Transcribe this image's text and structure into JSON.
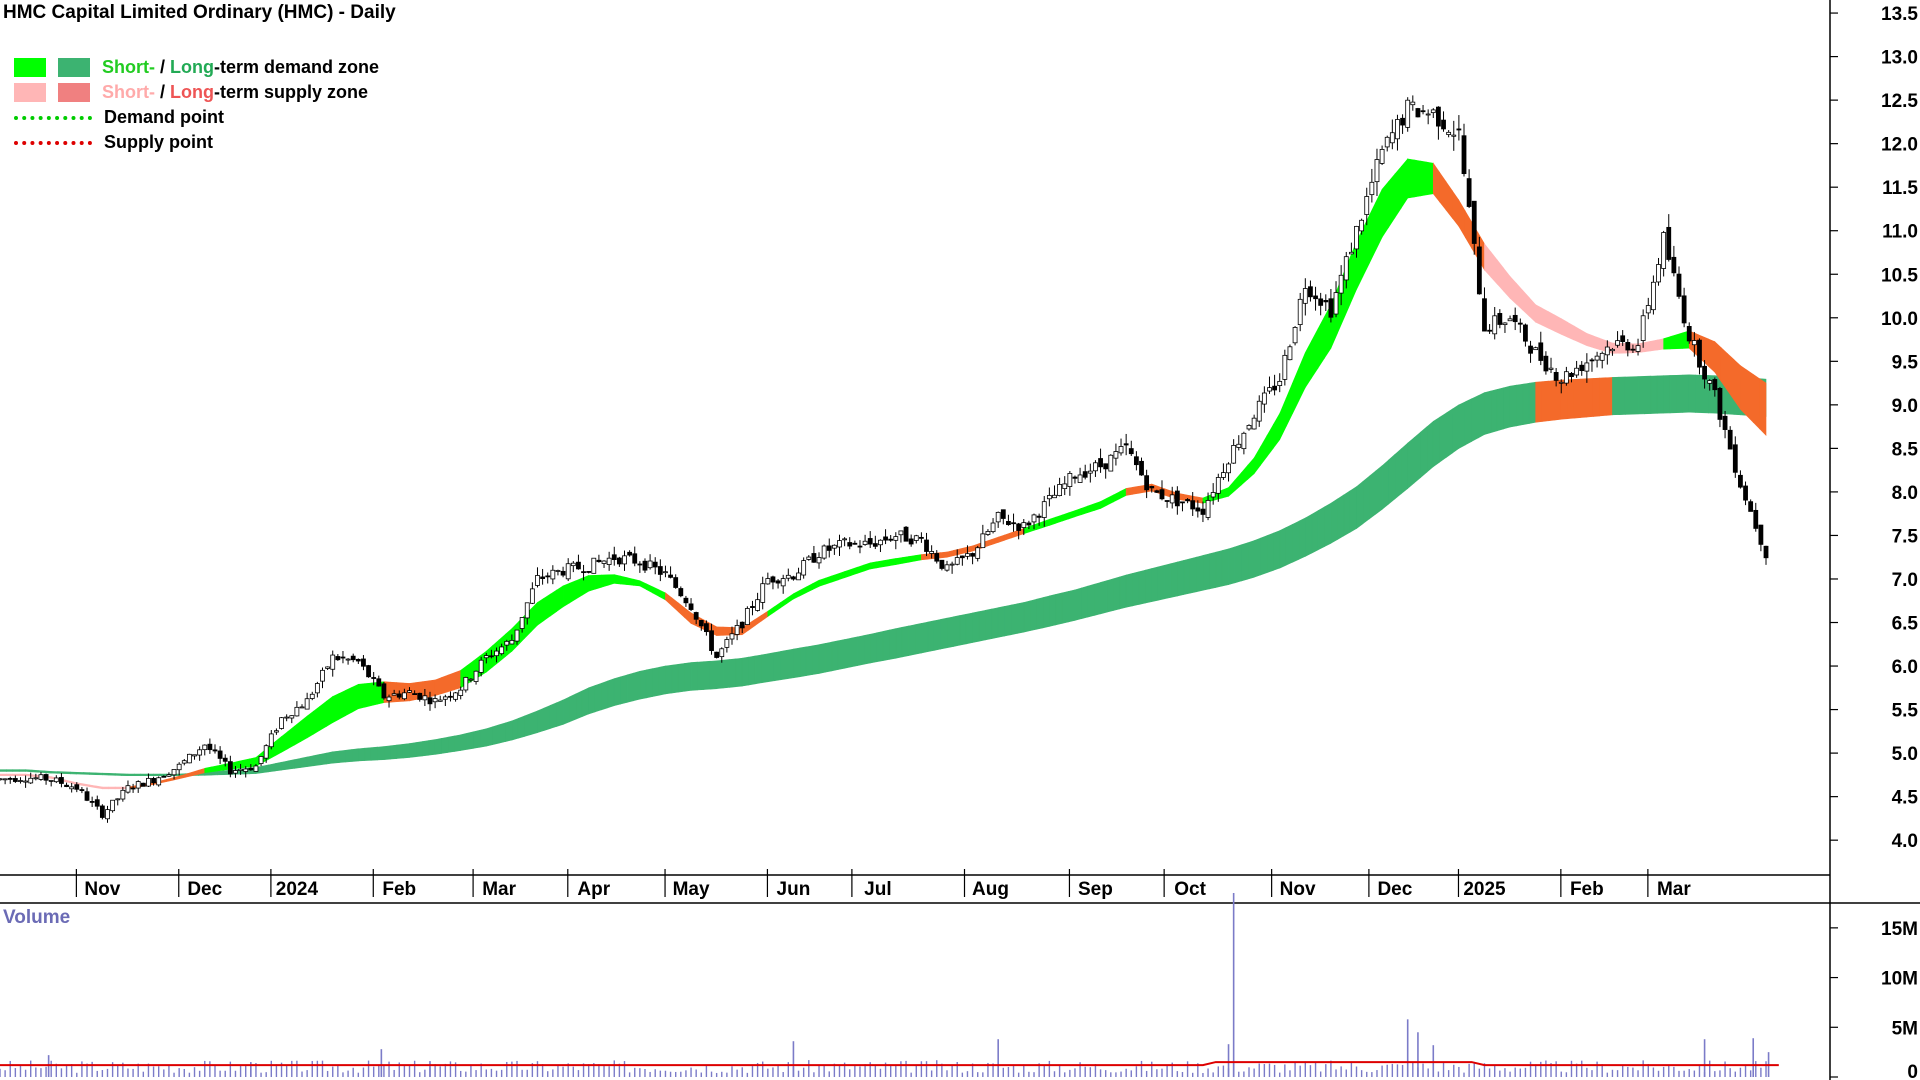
{
  "title": "HMC Capital Limited Ordinary (HMC) - Daily",
  "legend": {
    "row1": {
      "short": "Short-",
      "sep": " / ",
      "long": "Long",
      "rest": "-term demand zone"
    },
    "row2": {
      "short": "Short-",
      "sep": " / ",
      "long": "Long",
      "rest": "-term supply zone"
    },
    "row3": "Demand point",
    "row4": "Supply point"
  },
  "volume_label": "Volume",
  "colors": {
    "short_demand": "#00ff00",
    "long_demand": "#3cb371",
    "short_supply": "#ffb6b6",
    "long_supply": "#f08080",
    "overlap": "#f46a2a",
    "demand_point": "#00cc00",
    "supply_point": "#dd0000",
    "volume_bar": "#7b7bc8",
    "volume_ma": "#dd0000",
    "short_label": "#22cc22",
    "long_label": "#22aa55",
    "short_supply_label": "#ffaaaa",
    "long_supply_label": "#ee5555"
  },
  "chart_data": {
    "type": "candlestick",
    "price_axis": {
      "ticks": [
        "4.0",
        "4.5",
        "5.0",
        "5.5",
        "6.0",
        "6.5",
        "7.0",
        "7.5",
        "8.0",
        "8.5",
        "9.0",
        "9.5",
        "10.0",
        "10.5",
        "11.0",
        "11.5",
        "12.0",
        "12.5",
        "13.0",
        "13.5"
      ],
      "range": [
        3.6,
        13.65
      ]
    },
    "time_axis": {
      "labels": [
        "Nov",
        "Dec",
        "2024",
        "Feb",
        "Mar",
        "Apr",
        "May",
        "Jun",
        "Jul",
        "Aug",
        "Sep",
        "Oct",
        "Nov",
        "Dec",
        "2025",
        "Feb",
        "Mar"
      ],
      "label_weeks": [
        4.0,
        8.0,
        11.6,
        15.6,
        19.5,
        23.2,
        27.0,
        31.0,
        34.3,
        38.7,
        42.8,
        46.5,
        50.7,
        54.5,
        58.0,
        62.0,
        65.4
      ]
    },
    "week_closes": [
      4.7,
      4.72,
      4.7,
      4.6,
      4.3,
      4.6,
      4.7,
      4.85,
      5.1,
      4.8,
      4.85,
      5.4,
      5.6,
      6.1,
      6.05,
      5.65,
      5.7,
      5.6,
      5.75,
      6.1,
      6.3,
      7.0,
      7.1,
      7.15,
      7.25,
      7.2,
      7.05,
      6.7,
      6.1,
      6.5,
      7.0,
      7.05,
      7.3,
      7.4,
      7.4,
      7.5,
      7.45,
      7.1,
      7.3,
      7.7,
      7.6,
      7.9,
      8.2,
      8.3,
      8.5,
      8.0,
      7.9,
      7.8,
      8.4,
      8.9,
      9.3,
      10.4,
      10.1,
      11.0,
      11.9,
      12.4,
      12.35,
      12.1,
      9.9,
      10.0,
      9.6,
      9.3,
      9.5,
      9.7,
      9.7,
      10.9,
      9.8,
      9.1,
      8.1,
      7.3
    ],
    "short_zone": {
      "center": [
        4.75,
        4.75,
        4.72,
        4.65,
        4.6,
        4.6,
        4.65,
        4.72,
        4.8,
        4.85,
        4.9,
        5.1,
        5.3,
        5.5,
        5.65,
        5.7,
        5.7,
        5.75,
        5.85,
        6.05,
        6.3,
        6.6,
        6.8,
        6.95,
        7.0,
        6.95,
        6.8,
        6.55,
        6.4,
        6.4,
        6.6,
        6.8,
        6.95,
        7.05,
        7.15,
        7.2,
        7.25,
        7.28,
        7.35,
        7.45,
        7.55,
        7.65,
        7.75,
        7.85,
        8.0,
        8.05,
        7.95,
        7.9,
        8.0,
        8.3,
        8.75,
        9.4,
        9.9,
        10.6,
        11.2,
        11.6,
        11.6,
        11.2,
        10.7,
        10.35,
        10.05,
        9.9,
        9.75,
        9.65,
        9.65,
        9.7,
        9.75,
        9.55,
        9.2,
        8.95
      ],
      "width": [
        0.02,
        0.02,
        0.02,
        0.02,
        0.02,
        0.02,
        0.02,
        0.03,
        0.05,
        0.07,
        0.1,
        0.18,
        0.25,
        0.3,
        0.28,
        0.24,
        0.2,
        0.18,
        0.2,
        0.24,
        0.26,
        0.26,
        0.24,
        0.18,
        0.1,
        0.06,
        0.08,
        0.12,
        0.1,
        0.08,
        0.06,
        0.06,
        0.07,
        0.07,
        0.07,
        0.07,
        0.06,
        0.06,
        0.06,
        0.06,
        0.06,
        0.07,
        0.07,
        0.08,
        0.08,
        0.08,
        0.07,
        0.06,
        0.1,
        0.18,
        0.3,
        0.4,
        0.5,
        0.55,
        0.55,
        0.45,
        0.35,
        0.3,
        0.3,
        0.25,
        0.2,
        0.18,
        0.14,
        0.12,
        0.1,
        0.12,
        0.2,
        0.35,
        0.5,
        0.6
      ]
    },
    "long_zone": {
      "center": [
        4.8,
        4.8,
        4.78,
        4.77,
        4.76,
        4.75,
        4.75,
        4.75,
        4.76,
        4.78,
        4.8,
        4.85,
        4.9,
        4.95,
        4.98,
        5.0,
        5.03,
        5.07,
        5.12,
        5.18,
        5.26,
        5.36,
        5.47,
        5.6,
        5.7,
        5.78,
        5.84,
        5.88,
        5.9,
        5.93,
        5.98,
        6.03,
        6.08,
        6.14,
        6.2,
        6.26,
        6.32,
        6.38,
        6.44,
        6.5,
        6.56,
        6.63,
        6.7,
        6.78,
        6.86,
        6.93,
        7.0,
        7.07,
        7.14,
        7.23,
        7.34,
        7.48,
        7.64,
        7.82,
        8.05,
        8.3,
        8.55,
        8.75,
        8.9,
        8.98,
        9.03,
        9.06,
        9.08,
        9.1,
        9.11,
        9.12,
        9.13,
        9.12,
        9.1,
        9.08
      ],
      "width": [
        0.02,
        0.02,
        0.02,
        0.02,
        0.02,
        0.02,
        0.02,
        0.02,
        0.03,
        0.05,
        0.07,
        0.09,
        0.11,
        0.13,
        0.14,
        0.15,
        0.16,
        0.17,
        0.18,
        0.2,
        0.22,
        0.25,
        0.28,
        0.3,
        0.31,
        0.32,
        0.32,
        0.32,
        0.32,
        0.32,
        0.32,
        0.33,
        0.33,
        0.33,
        0.33,
        0.34,
        0.34,
        0.34,
        0.34,
        0.34,
        0.34,
        0.35,
        0.35,
        0.36,
        0.37,
        0.38,
        0.39,
        0.4,
        0.41,
        0.42,
        0.43,
        0.44,
        0.46,
        0.48,
        0.5,
        0.52,
        0.52,
        0.5,
        0.48,
        0.47,
        0.46,
        0.45,
        0.44,
        0.43,
        0.43,
        0.43,
        0.43,
        0.43,
        0.43,
        0.43
      ]
    },
    "short_zone_supply_weeks": [
      0,
      1,
      2,
      3,
      4,
      5,
      6,
      7,
      26,
      27,
      28,
      29,
      56,
      57,
      58,
      59,
      60,
      61,
      62,
      63,
      64,
      66,
      67,
      68,
      69
    ],
    "short_zone_overlap_weeks": [
      5,
      6,
      7,
      15,
      16,
      17,
      26,
      27,
      28,
      29,
      36,
      37,
      38,
      39,
      44,
      45,
      46,
      56,
      57,
      66,
      67,
      68,
      69
    ],
    "long_zone_overlap_weeks": [
      60,
      61,
      62
    ],
    "volume_axis": {
      "ticks": [
        "0",
        "5M",
        "10M",
        "15M"
      ],
      "range": [
        0,
        17500000
      ]
    },
    "volume_ma_level": 1200000,
    "volume_spikes": [
      {
        "week": 14.9,
        "value": 2800000
      },
      {
        "week": 16.8,
        "value": 1600000
      },
      {
        "week": 48.2,
        "value": 18500000
      },
      {
        "week": 48.0,
        "value": 3300000
      },
      {
        "week": 55.0,
        "value": 5800000
      },
      {
        "week": 55.4,
        "value": 4500000
      },
      {
        "week": 56.0,
        "value": 3200000
      },
      {
        "week": 39.0,
        "value": 3800000
      },
      {
        "week": 31.0,
        "value": 3600000
      },
      {
        "week": 66.6,
        "value": 3800000
      },
      {
        "week": 68.5,
        "value": 3900000
      },
      {
        "week": 69.1,
        "value": 2500000
      },
      {
        "week": 1.9,
        "value": 2200000
      },
      {
        "week": 9.8,
        "value": 1500000
      }
    ]
  }
}
